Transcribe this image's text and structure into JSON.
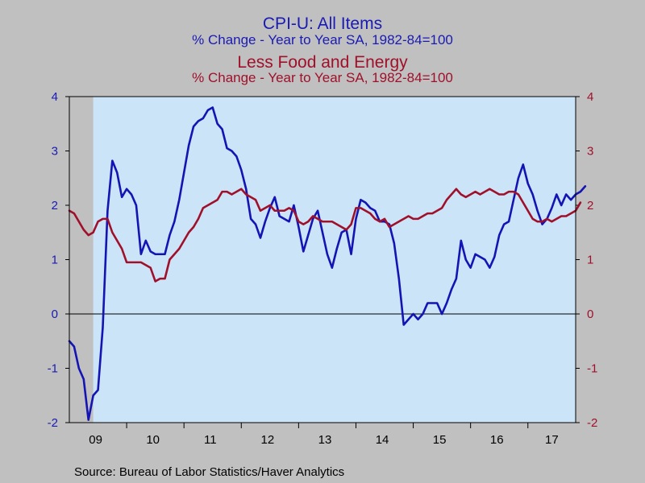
{
  "titles": {
    "main": "CPI-U: All Items",
    "main_sub": "% Change - Year to Year    SA, 1982-84=100",
    "second": "Less Food and Energy",
    "second_sub": "% Change - Year to Year    SA, 1982-84=100"
  },
  "source": "Source:  Bureau of Labor Statistics/Haver Analytics",
  "colors": {
    "cpi_all": "#1414b4",
    "core": "#a0102a",
    "plot_bg": "#cce4f8",
    "frame": "#c0c0c0",
    "recession": "#c0c0c0"
  },
  "chart_data": {
    "type": "line",
    "x_label_format": "two-digit year",
    "xlim": [
      "2009-01",
      "2017-11"
    ],
    "x_tick_labels": [
      "09",
      "10",
      "11",
      "12",
      "13",
      "14",
      "15",
      "16",
      "17"
    ],
    "ylim": [
      -2,
      4
    ],
    "y_ticks": [
      "-2",
      "-1",
      "0",
      "1",
      "2",
      "3",
      "4"
    ],
    "y2_ticks": [
      "-2",
      "-1",
      "0",
      "1",
      "2",
      "3",
      "4"
    ],
    "zero_line": true,
    "recession_shading": [
      "2009-01",
      "2009-06"
    ],
    "series": [
      {
        "name": "CPI-U: All Items",
        "axis": "left",
        "start": "2009-01",
        "values": [
          -0.5,
          -0.6,
          -1.0,
          -1.2,
          -1.95,
          -1.5,
          -1.4,
          -0.25,
          1.9,
          2.82,
          2.6,
          2.15,
          2.3,
          2.2,
          2.0,
          1.1,
          1.35,
          1.15,
          1.1,
          1.1,
          1.1,
          1.45,
          1.7,
          2.1,
          2.6,
          3.1,
          3.45,
          3.55,
          3.6,
          3.75,
          3.8,
          3.5,
          3.4,
          3.05,
          3.0,
          2.9,
          2.65,
          2.3,
          1.75,
          1.65,
          1.4,
          1.7,
          1.95,
          2.15,
          1.8,
          1.75,
          1.7,
          2.0,
          1.6,
          1.15,
          1.45,
          1.75,
          1.9,
          1.5,
          1.1,
          0.85,
          1.2,
          1.5,
          1.55,
          1.1,
          1.75,
          2.1,
          2.05,
          1.95,
          1.9,
          1.7,
          1.7,
          1.65,
          1.3,
          0.65,
          -0.2,
          -0.1,
          0.0,
          -0.1,
          0.0,
          0.2,
          0.2,
          0.2,
          0.0,
          0.2,
          0.45,
          0.65,
          1.35,
          1.0,
          0.85,
          1.1,
          1.05,
          1.0,
          0.85,
          1.05,
          1.45,
          1.65,
          1.7,
          2.1,
          2.5,
          2.75,
          2.4,
          2.2,
          1.9,
          1.65,
          1.75,
          1.95,
          2.2,
          2.0,
          2.2,
          2.1,
          2.2,
          2.25,
          2.35
        ]
      },
      {
        "name": "Less Food and Energy",
        "axis": "right",
        "start": "2009-01",
        "values": [
          1.9,
          1.85,
          1.7,
          1.55,
          1.45,
          1.5,
          1.7,
          1.75,
          1.75,
          1.5,
          1.35,
          1.2,
          0.95,
          0.95,
          0.95,
          0.95,
          0.9,
          0.85,
          0.6,
          0.65,
          0.65,
          1.0,
          1.1,
          1.2,
          1.35,
          1.5,
          1.6,
          1.75,
          1.95,
          2.0,
          2.05,
          2.1,
          2.25,
          2.25,
          2.2,
          2.25,
          2.3,
          2.2,
          2.15,
          2.1,
          1.9,
          1.95,
          2.0,
          1.9,
          1.9,
          1.9,
          1.95,
          1.9,
          1.7,
          1.65,
          1.7,
          1.8,
          1.75,
          1.7,
          1.7,
          1.7,
          1.65,
          1.6,
          1.55,
          1.65,
          1.95,
          1.95,
          1.9,
          1.85,
          1.75,
          1.7,
          1.75,
          1.6,
          1.65,
          1.7,
          1.75,
          1.8,
          1.75,
          1.75,
          1.8,
          1.85,
          1.85,
          1.9,
          1.95,
          2.1,
          2.2,
          2.3,
          2.2,
          2.15,
          2.2,
          2.25,
          2.2,
          2.25,
          2.3,
          2.25,
          2.2,
          2.2,
          2.25,
          2.25,
          2.2,
          2.05,
          1.9,
          1.75,
          1.7,
          1.7,
          1.75,
          1.7,
          1.75,
          1.8,
          1.8,
          1.85,
          1.9,
          2.05
        ]
      }
    ]
  }
}
